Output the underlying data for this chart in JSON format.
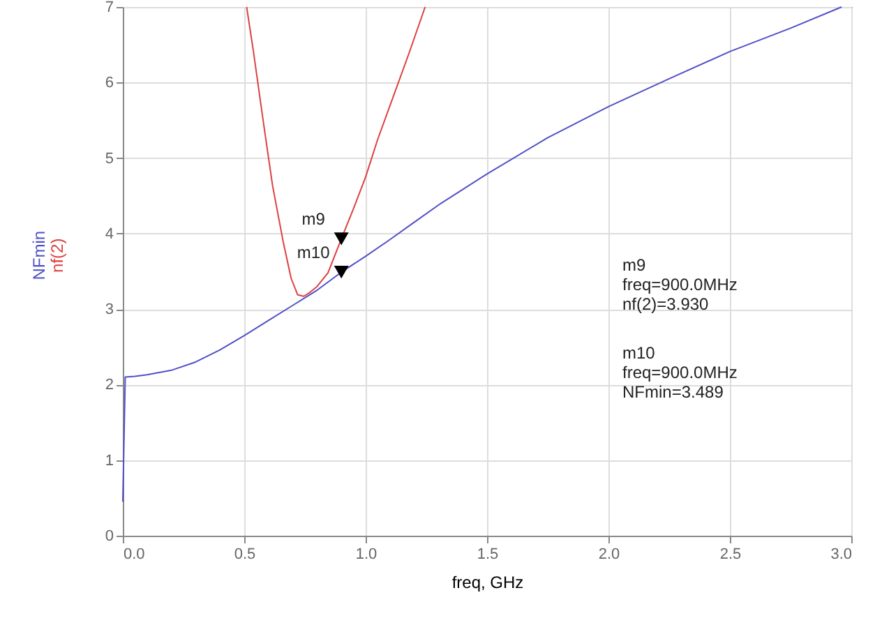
{
  "chart_data": {
    "type": "line",
    "xlabel": "freq, GHz",
    "xlim": [
      0,
      3
    ],
    "ylim": [
      0,
      7
    ],
    "xticks": [
      {
        "value": 0,
        "label": "0.0"
      },
      {
        "value": 0.5,
        "label": "0.5"
      },
      {
        "value": 1,
        "label": "1.0"
      },
      {
        "value": 1.5,
        "label": "1.5"
      },
      {
        "value": 2,
        "label": "2.0"
      },
      {
        "value": 2.5,
        "label": "2.5"
      },
      {
        "value": 3,
        "label": "3.0"
      }
    ],
    "yticks": [
      {
        "value": 0,
        "label": "0"
      },
      {
        "value": 1,
        "label": "1"
      },
      {
        "value": 2,
        "label": "2"
      },
      {
        "value": 3,
        "label": "3"
      },
      {
        "value": 4,
        "label": "4"
      },
      {
        "value": 5,
        "label": "5"
      },
      {
        "value": 6,
        "label": "6"
      },
      {
        "value": 7,
        "label": "7"
      }
    ],
    "grid": true,
    "line_style": "solid",
    "marker": "none",
    "series": [
      {
        "name": "NFmin",
        "color": "#5050c8",
        "x": [
          0.0,
          0.01,
          0.05,
          0.1,
          0.2,
          0.3,
          0.4,
          0.5,
          0.6,
          0.7,
          0.75,
          0.8,
          0.9,
          1.0,
          1.1,
          1.2,
          1.31,
          1.5,
          1.75,
          2.0,
          2.25,
          2.5,
          2.75,
          2.96
        ],
        "values": [
          0.45,
          2.1,
          2.11,
          2.13,
          2.19,
          2.3,
          2.46,
          2.65,
          2.85,
          3.05,
          3.15,
          3.25,
          3.489,
          3.7,
          3.92,
          4.15,
          4.4,
          4.79,
          5.27,
          5.68,
          6.05,
          6.41,
          6.72,
          7.0
        ]
      },
      {
        "name": "nf(2)",
        "color": "#dd4040",
        "x": [
          0.51,
          0.538,
          0.58,
          0.617,
          0.66,
          0.693,
          0.72,
          0.745,
          0.77,
          0.8,
          0.845,
          0.9,
          0.95,
          1.0,
          1.05,
          1.11,
          1.18,
          1.245
        ],
        "values": [
          7.0,
          6.41,
          5.45,
          4.63,
          3.9,
          3.41,
          3.19,
          3.17,
          3.22,
          3.3,
          3.48,
          3.93,
          4.33,
          4.75,
          5.25,
          5.78,
          6.4,
          7.0
        ]
      },
      {
        "type": "scatter",
        "marker": "triangle",
        "color": "#000000",
        "x": [
          0.9,
          0.9
        ],
        "values": [
          3.93,
          3.489
        ]
      }
    ],
    "annotations": [
      {
        "text": "m9",
        "x": 0.9,
        "y": 3.93
      },
      {
        "text": "m10",
        "x": 0.9,
        "y": 3.489
      },
      "m9\nfreq=900.0MHz\nnf(2)=3.930",
      "m10\nfreq=900.0MHz\nNFmin=3.489"
    ]
  }
}
